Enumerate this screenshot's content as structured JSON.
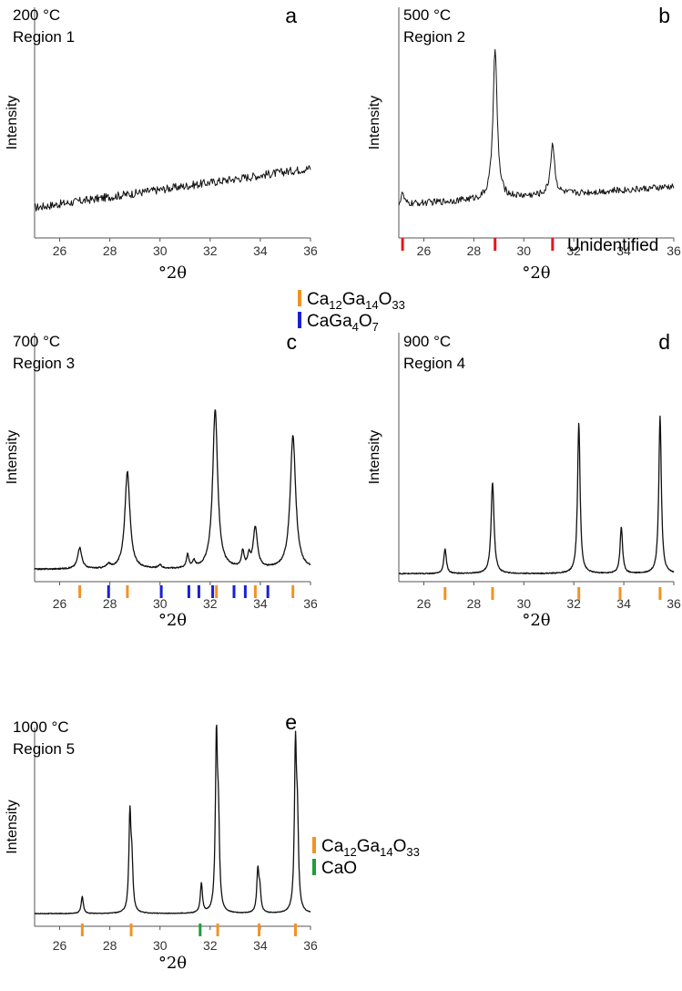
{
  "chart_data": [
    {
      "type": "line",
      "panel_letter": "a",
      "temperature_label": "200 °C",
      "region_label": "Region 1",
      "xlabel": "°2θ",
      "ylabel": "Intensity",
      "xlim": [
        25,
        36
      ],
      "xticks": [
        "26",
        "28",
        "30",
        "32",
        "34",
        "36"
      ],
      "trace": "noisy",
      "baseline_start": 0.08,
      "baseline_end": 0.27,
      "noise": 0.02,
      "peaks": [],
      "markers": [],
      "marker_label": ""
    },
    {
      "type": "line",
      "panel_letter": "b",
      "temperature_label": "500 °C",
      "region_label": "Region 2",
      "xlabel": "°2θ",
      "ylabel": "Intensity",
      "xlim": [
        25,
        36
      ],
      "xticks": [
        "26",
        "28",
        "30",
        "32",
        "34",
        "36"
      ],
      "trace": "noisy",
      "baseline_start": 0.1,
      "baseline_end": 0.19,
      "noise": 0.017,
      "peaks": [
        {
          "x": 25.15,
          "h": 0.06,
          "w": 0.06
        },
        {
          "x": 28.85,
          "h": 0.76,
          "w": 0.1
        },
        {
          "x": 31.15,
          "h": 0.26,
          "w": 0.1
        }
      ],
      "markers": [
        {
          "x": 25.15,
          "phase": "Unidentified"
        },
        {
          "x": 28.85,
          "phase": "Unidentified"
        },
        {
          "x": 31.15,
          "phase": "Unidentified"
        }
      ],
      "marker_label": "Unidentified"
    },
    {
      "type": "line",
      "panel_letter": "c",
      "temperature_label": "700 °C",
      "region_label": "Region 3",
      "xlabel": "°2θ",
      "ylabel": "Intensity",
      "xlim": [
        25,
        36
      ],
      "xticks": [
        "26",
        "28",
        "30",
        "32",
        "34",
        "36"
      ],
      "trace": "smooth",
      "baseline_start": 0.02,
      "baseline_end": 0.02,
      "noise": 0.004,
      "peaks": [
        {
          "x": 26.8,
          "h": 0.13,
          "w": 0.1
        },
        {
          "x": 28.7,
          "h": 0.6,
          "w": 0.12
        },
        {
          "x": 27.95,
          "h": 0.025,
          "w": 0.08
        },
        {
          "x": 30.0,
          "h": 0.02,
          "w": 0.08
        },
        {
          "x": 31.1,
          "h": 0.08,
          "w": 0.06
        },
        {
          "x": 31.35,
          "h": 0.04,
          "w": 0.06
        },
        {
          "x": 32.2,
          "h": 0.98,
          "w": 0.12
        },
        {
          "x": 33.3,
          "h": 0.1,
          "w": 0.06
        },
        {
          "x": 33.55,
          "h": 0.07,
          "w": 0.06
        },
        {
          "x": 33.8,
          "h": 0.25,
          "w": 0.1
        },
        {
          "x": 35.3,
          "h": 0.82,
          "w": 0.13
        }
      ],
      "markers": [
        {
          "x": 26.8,
          "phase": "Ca12Ga14O33"
        },
        {
          "x": 28.7,
          "phase": "Ca12Ga14O33"
        },
        {
          "x": 32.25,
          "phase": "Ca12Ga14O33"
        },
        {
          "x": 33.8,
          "phase": "Ca12Ga14O33"
        },
        {
          "x": 35.3,
          "phase": "Ca12Ga14O33"
        },
        {
          "x": 27.95,
          "phase": "CaGa4O7"
        },
        {
          "x": 30.05,
          "phase": "CaGa4O7"
        },
        {
          "x": 31.15,
          "phase": "CaGa4O7"
        },
        {
          "x": 31.55,
          "phase": "CaGa4O7"
        },
        {
          "x": 32.1,
          "phase": "CaGa4O7"
        },
        {
          "x": 32.95,
          "phase": "CaGa4O7"
        },
        {
          "x": 33.4,
          "phase": "CaGa4O7"
        },
        {
          "x": 34.3,
          "phase": "CaGa4O7"
        }
      ],
      "marker_label": ""
    },
    {
      "type": "line",
      "panel_letter": "d",
      "temperature_label": "900 °C",
      "region_label": "Region 4",
      "xlabel": "°2θ",
      "ylabel": "Intensity",
      "xlim": [
        25,
        36
      ],
      "xticks": [
        "26",
        "28",
        "30",
        "32",
        "34",
        "36"
      ],
      "trace": "smooth",
      "baseline_start": 0.015,
      "baseline_end": 0.015,
      "noise": 0.003,
      "peaks": [
        {
          "x": 26.85,
          "h": 0.15,
          "w": 0.06
        },
        {
          "x": 28.75,
          "h": 0.55,
          "w": 0.07
        },
        {
          "x": 32.2,
          "h": 0.91,
          "w": 0.06
        },
        {
          "x": 33.9,
          "h": 0.28,
          "w": 0.06
        },
        {
          "x": 35.45,
          "h": 0.95,
          "w": 0.06
        }
      ],
      "markers": [
        {
          "x": 26.85,
          "phase": "Ca12Ga14O33"
        },
        {
          "x": 28.75,
          "phase": "Ca12Ga14O33"
        },
        {
          "x": 32.2,
          "phase": "Ca12Ga14O33"
        },
        {
          "x": 33.85,
          "phase": "Ca12Ga14O33"
        },
        {
          "x": 35.45,
          "phase": "Ca12Ga14O33"
        }
      ],
      "marker_label": ""
    },
    {
      "type": "line",
      "panel_letter": "e",
      "temperature_label": "1000 °C",
      "region_label": "Region 5",
      "xlabel": "°2θ",
      "ylabel": "Intensity",
      "xlim": [
        25,
        36
      ],
      "xticks": [
        "26",
        "28",
        "30",
        "32",
        "34",
        "36"
      ],
      "trace": "smooth",
      "baseline_start": 0.015,
      "baseline_end": 0.015,
      "noise": 0.002,
      "peaks": [
        {
          "x": 26.9,
          "h": 0.1,
          "w": 0.05
        },
        {
          "x": 28.8,
          "h": 0.55,
          "w": 0.05
        },
        {
          "x": 28.88,
          "h": 0.25,
          "w": 0.05
        },
        {
          "x": 31.65,
          "h": 0.17,
          "w": 0.05
        },
        {
          "x": 32.25,
          "h": 0.97,
          "w": 0.05
        },
        {
          "x": 32.33,
          "h": 0.45,
          "w": 0.05
        },
        {
          "x": 33.9,
          "h": 0.24,
          "w": 0.05
        },
        {
          "x": 33.98,
          "h": 0.12,
          "w": 0.05
        },
        {
          "x": 35.4,
          "h": 0.92,
          "w": 0.05
        },
        {
          "x": 35.48,
          "h": 0.45,
          "w": 0.05
        }
      ],
      "markers": [
        {
          "x": 26.9,
          "phase": "Ca12Ga14O33"
        },
        {
          "x": 28.85,
          "phase": "Ca12Ga14O33"
        },
        {
          "x": 32.3,
          "phase": "Ca12Ga14O33"
        },
        {
          "x": 33.95,
          "phase": "Ca12Ga14O33"
        },
        {
          "x": 35.4,
          "phase": "Ca12Ga14O33"
        },
        {
          "x": 31.6,
          "phase": "CaO"
        }
      ],
      "marker_label": ""
    }
  ],
  "phase_colors": {
    "Unidentified": "#e8151d",
    "Ca12Ga14O33": "#f39224",
    "CaGa4O7": "#1a1fd6",
    "CaO": "#1f9d3a"
  },
  "legend_top": [
    {
      "phase": "Ca12Ga14O33",
      "parts": [
        "Ca",
        "12",
        "Ga",
        "14",
        "O",
        "33"
      ]
    },
    {
      "phase": "CaGa4O7",
      "parts": [
        "CaGa",
        "4",
        "O",
        "7"
      ]
    }
  ],
  "legend_bottom": [
    {
      "phase": "Ca12Ga14O33",
      "parts": [
        "Ca",
        "12",
        "Ga",
        "14",
        "O",
        "33"
      ]
    },
    {
      "phase": "CaO",
      "parts": [
        "CaO"
      ]
    }
  ]
}
